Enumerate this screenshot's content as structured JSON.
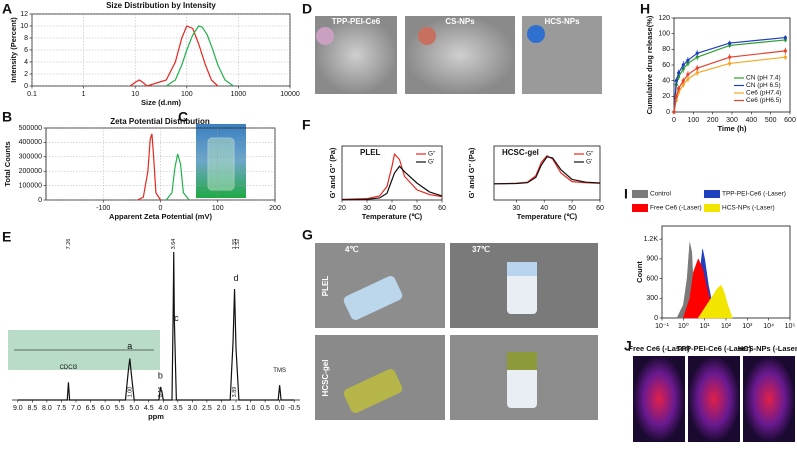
{
  "panel_letters": [
    "A",
    "B",
    "C",
    "D",
    "E",
    "F",
    "G",
    "H",
    "I",
    "J"
  ],
  "photos": {
    "D": [
      "TPP-PEI-Ce6",
      "CS-NPs",
      "HCS-NPs"
    ],
    "G": {
      "columns": [
        "4℃",
        "37℃"
      ],
      "rows": [
        "PLEL",
        "HCSC-gel"
      ]
    },
    "J": [
      "Free Ce6 (-Laser)",
      "TPP-PEI-Ce6 (-Laser)",
      "HCS-NPs (-Laser)"
    ]
  },
  "chart_data": [
    {
      "type": "line",
      "title": "Size Distribution by Intensity",
      "xlabel": "Size (d.nm)",
      "ylabel": "Intensity (Percent)",
      "xscale": "log",
      "xlim": [
        0.1,
        10000
      ],
      "xticks": [
        0.1,
        1,
        10,
        100,
        1000,
        10000
      ],
      "ylim": [
        0,
        12
      ],
      "yticks": [
        0,
        2,
        4,
        6,
        8,
        10,
        12
      ],
      "grid": true,
      "series": [
        {
          "color": "#e8261f",
          "x": [
            8,
            10,
            12,
            14,
            17,
            40,
            60,
            80,
            100,
            130,
            170,
            230,
            300,
            400
          ],
          "values": [
            0,
            0.6,
            1,
            0.6,
            0,
            1,
            4,
            8,
            10,
            9.6,
            7,
            3.5,
            1,
            0
          ]
        },
        {
          "color": "#22b14c",
          "x": [
            40,
            60,
            80,
            100,
            130,
            170,
            200,
            250,
            320,
            400,
            550,
            800
          ],
          "values": [
            0,
            1,
            3.5,
            6,
            8.5,
            10,
            9.8,
            8.5,
            6,
            3.5,
            1,
            0
          ]
        }
      ]
    },
    {
      "type": "line",
      "title": "Zeta Potential Distribution",
      "xlabel": "Apparent Zeta Potential (mV)",
      "ylabel": "Total Counts",
      "xlim": [
        -200,
        200
      ],
      "xticks": [
        -100,
        0,
        100,
        200
      ],
      "ylim": [
        0,
        500000
      ],
      "yticks": [
        0,
        100000,
        200000,
        300000,
        400000,
        500000
      ],
      "grid": true,
      "series": [
        {
          "color": "#e8261f",
          "x": [
            -40,
            -30,
            -22,
            -18,
            -15,
            -12,
            -8,
            0
          ],
          "values": [
            0,
            20000,
            200000,
            420000,
            460000,
            300000,
            50000,
            0
          ]
        },
        {
          "color": "#22b14c",
          "x": [
            10,
            20,
            25,
            30,
            35,
            40,
            50
          ],
          "values": [
            0,
            50000,
            220000,
            320000,
            250000,
            50000,
            0
          ]
        }
      ]
    },
    {
      "type": "line",
      "xlabel": "ppm",
      "frame": false,
      "xlim": [
        9.2,
        -0.7
      ],
      "xticks": [
        {
          "value": 9,
          "label": "9.0"
        },
        8.5,
        {
          "value": 8,
          "label": "8.0"
        },
        7.5,
        {
          "value": 7,
          "label": "7.0"
        },
        6.5,
        {
          "value": 6,
          "label": "6.0"
        },
        5.5,
        {
          "value": 5,
          "label": "5.0"
        },
        4.5,
        {
          "value": 4,
          "label": "4.0"
        },
        3.5,
        {
          "value": 3,
          "label": "3.0"
        },
        2.5,
        {
          "value": 2,
          "label": "2.0"
        },
        1.5,
        {
          "value": 1,
          "label": "1.0"
        },
        0.5,
        {
          "value": 0,
          "label": "0.0"
        },
        -0.5
      ],
      "ylim": [
        0,
        100
      ],
      "series": [
        {
          "color": "#111111",
          "x": [
            9,
            7.3,
            7.26,
            7.22,
            5.3,
            5.2,
            5.15,
            5.1,
            5.0,
            4.15,
            4.1,
            4.05,
            4.0,
            3.7,
            3.66,
            3.64,
            3.62,
            3.55,
            1.7,
            1.6,
            1.55,
            1.5,
            1.4,
            0.05,
            0,
            -0.05,
            -0.5
          ],
          "values": [
            0,
            0,
            12,
            0,
            0,
            20,
            28,
            18,
            0,
            0,
            8,
            6,
            0,
            0,
            60,
            100,
            55,
            0,
            0,
            40,
            75,
            35,
            0,
            0,
            10,
            0,
            0
          ]
        }
      ],
      "annotations": [
        {
          "text": "a",
          "x": 5.15,
          "y": 36
        },
        {
          "text": "b",
          "x": 4.1,
          "y": 16
        },
        {
          "text": "c",
          "x": 3.55,
          "y": 55
        },
        {
          "text": "d",
          "x": 1.5,
          "y": 82
        },
        {
          "text": "CDCl3",
          "x": 7.26,
          "y": 22
        },
        {
          "text": "TMS",
          "x": 0,
          "y": 20
        }
      ],
      "peak_labels": [
        {
          "text": "7.26",
          "x": 7.26
        },
        {
          "text": "3.64",
          "x": 3.64
        },
        {
          "text": "1.55",
          "x": 1.55
        },
        {
          "text": "1.52",
          "x": 1.45
        }
      ],
      "integrals": [
        {
          "text": "1.00",
          "x": 5.15
        },
        {
          "text": "0.16",
          "x": 4.1
        },
        {
          "text": "3.89",
          "x": 1.55
        }
      ]
    },
    {
      "type": "line",
      "title": "PLEL",
      "xlabel": "Temperature (℃)",
      "ylabel": "G' and G'' (Pa)",
      "xlim": [
        20,
        60
      ],
      "xticks": [
        20,
        30,
        40,
        50,
        60
      ],
      "ylim": [
        0,
        800
      ],
      "legend": "upper right",
      "series": [
        {
          "name": "G''",
          "color": "#e8261f",
          "x": [
            20,
            30,
            35,
            38,
            40,
            41,
            43,
            45,
            50,
            55,
            60
          ],
          "values": [
            10,
            20,
            60,
            200,
            500,
            680,
            600,
            350,
            150,
            80,
            50
          ]
        },
        {
          "name": "G'",
          "color": "#111111",
          "x": [
            20,
            30,
            35,
            38,
            40,
            41,
            43,
            45,
            50,
            55,
            60
          ],
          "values": [
            5,
            10,
            30,
            100,
            300,
            400,
            500,
            420,
            250,
            120,
            60
          ]
        }
      ]
    },
    {
      "type": "line",
      "title": "HCSC-gel",
      "xlabel": "Temperature (℃)",
      "ylabel": "G' and G'' (Pa)",
      "xlim": [
        22,
        60
      ],
      "xticks": [
        30,
        40,
        50,
        60
      ],
      "ylim": [
        0,
        1000
      ],
      "legend": "upper right",
      "series": [
        {
          "name": "G''",
          "color": "#e8261f",
          "x": [
            22,
            30,
            34,
            37,
            39,
            41,
            43,
            46,
            50,
            55,
            60
          ],
          "values": [
            300,
            310,
            330,
            450,
            700,
            820,
            760,
            500,
            340,
            320,
            310
          ]
        },
        {
          "name": "G'",
          "color": "#111111",
          "x": [
            22,
            30,
            34,
            37,
            39,
            41,
            43,
            46,
            50,
            55,
            60
          ],
          "values": [
            300,
            305,
            320,
            420,
            650,
            800,
            780,
            560,
            380,
            330,
            315
          ]
        }
      ]
    },
    {
      "type": "line",
      "xlabel": "Time (h)",
      "ylabel": "Cumulative drug release(%)",
      "xlim": [
        0,
        600
      ],
      "xticks": [
        0,
        100,
        200,
        300,
        400,
        500,
        600
      ],
      "ylim": [
        0,
        120
      ],
      "yticks": [
        0,
        20,
        40,
        60,
        80,
        100,
        120
      ],
      "legend": "lower right",
      "series": [
        {
          "name": "CN (pH 7.4)",
          "color": "#2ca02c",
          "x": [
            0,
            12,
            24,
            48,
            72,
            120,
            288,
            576
          ],
          "values": [
            0,
            35,
            45,
            55,
            62,
            70,
            85,
            92
          ],
          "errors": [
            0,
            4,
            4,
            5,
            4,
            4,
            3,
            3
          ]
        },
        {
          "name": "CN (pH 6.5)",
          "color": "#1f3fbf",
          "x": [
            0,
            12,
            24,
            48,
            72,
            120,
            288,
            576
          ],
          "values": [
            0,
            40,
            50,
            60,
            66,
            75,
            88,
            95
          ],
          "errors": [
            0,
            4,
            4,
            5,
            4,
            4,
            3,
            3
          ]
        },
        {
          "name": "Ce6 (pH7.4)",
          "color": "#f5a623",
          "x": [
            0,
            12,
            24,
            48,
            72,
            120,
            288,
            576
          ],
          "values": [
            0,
            15,
            25,
            35,
            42,
            50,
            62,
            70
          ],
          "errors": [
            0,
            3,
            4,
            4,
            4,
            4,
            4,
            4
          ]
        },
        {
          "name": "Ce6 (pH6.5)",
          "color": "#e8412c",
          "x": [
            0,
            12,
            24,
            48,
            72,
            120,
            288,
            576
          ],
          "values": [
            0,
            20,
            30,
            40,
            48,
            56,
            70,
            78
          ],
          "errors": [
            0,
            3,
            4,
            4,
            4,
            4,
            4,
            4
          ]
        }
      ]
    },
    {
      "type": "area",
      "ylabel": "Count",
      "legend": "above",
      "xscale": "log",
      "xlim": [
        0.1,
        100000
      ],
      "xticks": [
        {
          "value": 0.1,
          "label": "10⁻¹"
        },
        {
          "value": 1,
          "label": "10⁰"
        },
        {
          "value": 10,
          "label": "10¹"
        },
        {
          "value": 100,
          "label": "10²"
        },
        {
          "value": 1000,
          "label": "10³"
        },
        {
          "value": 10000,
          "label": "10⁴"
        },
        {
          "value": 100000,
          "label": "10⁵"
        }
      ],
      "ylim": [
        0,
        1400
      ],
      "yticks": [
        0,
        300,
        600,
        900,
        {
          "value": 1200,
          "label": "1.2K"
        }
      ],
      "series": [
        {
          "name": "Control",
          "color": "#7a7a7a",
          "x": [
            0.5,
            1,
            1.5,
            2,
            2.5,
            3,
            4,
            6
          ],
          "values": [
            0,
            200,
            600,
            1150,
            1000,
            400,
            100,
            0
          ]
        },
        {
          "name": "TPP-PEI-Ce6 (-Laser)",
          "color": "#1f3fbf",
          "x": [
            2,
            4,
            6,
            8,
            10,
            15,
            25,
            50
          ],
          "values": [
            0,
            300,
            700,
            1050,
            900,
            500,
            150,
            0
          ]
        },
        {
          "name": "Free Ce6 (-Laser)",
          "color": "#ff0000",
          "x": [
            1,
            2,
            3,
            5,
            8,
            12,
            20,
            40,
            60
          ],
          "values": [
            0,
            300,
            700,
            900,
            750,
            500,
            200,
            50,
            0
          ]
        },
        {
          "name": "HCS-NPs (-Laser)",
          "color": "#f2e600",
          "x": [
            5,
            10,
            20,
            40,
            60,
            80,
            120,
            200
          ],
          "values": [
            0,
            150,
            300,
            450,
            500,
            400,
            200,
            0
          ]
        }
      ]
    }
  ]
}
